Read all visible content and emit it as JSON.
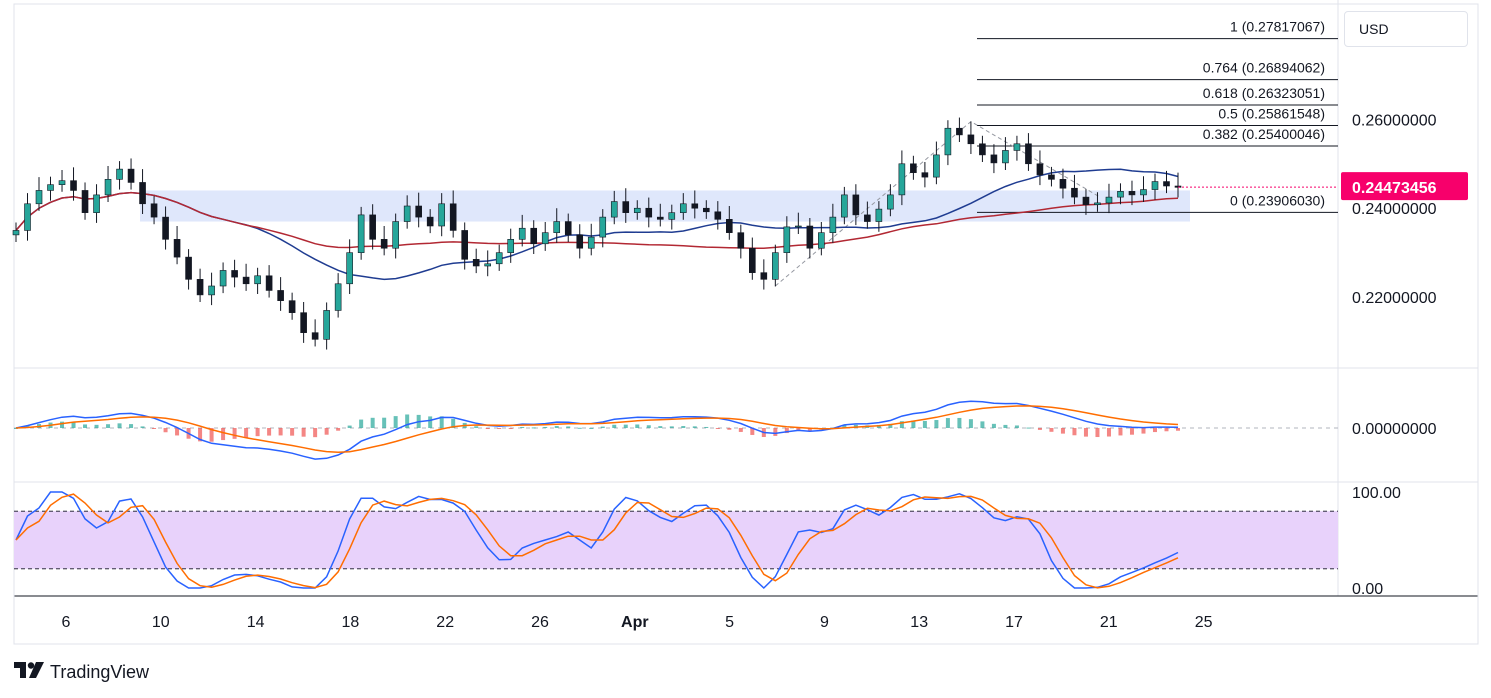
{
  "currency_label": "USD",
  "brand": {
    "name": "TradingView",
    "logo_icon": "tradingview-logo-icon"
  },
  "chart_data": {
    "type": "candlestick",
    "price_axis": {
      "ticks": [
        {
          "value": 0.26,
          "label": "0.26000000"
        },
        {
          "value": 0.24,
          "label": "0.24000000"
        },
        {
          "value": 0.22,
          "label": "0.22000000"
        }
      ],
      "ylim": [
        0.2045,
        0.2855
      ]
    },
    "last_price": {
      "value": 0.24473456,
      "label": "0.24473456",
      "color": "#f7006b"
    },
    "x_axis": {
      "labels": [
        "6",
        "10",
        "14",
        "18",
        "22",
        "26",
        "Apr",
        "5",
        "9",
        "13",
        "17",
        "21",
        "25"
      ],
      "day_index": [
        0,
        4,
        8,
        12,
        16,
        20,
        24,
        28,
        32,
        36,
        40,
        44,
        48
      ]
    },
    "bar_interval_days": 0.1667,
    "close": [
      0.235,
      0.241,
      0.244,
      0.2453,
      0.2462,
      0.244,
      0.239,
      0.243,
      0.2465,
      0.2488,
      0.2458,
      0.241,
      0.238,
      0.233,
      0.229,
      0.224,
      0.2205,
      0.2225,
      0.226,
      0.2245,
      0.223,
      0.2248,
      0.2215,
      0.2192,
      0.2165,
      0.212,
      0.2105,
      0.217,
      0.223,
      0.23,
      0.2385,
      0.233,
      0.231,
      0.237,
      0.2405,
      0.238,
      0.236,
      0.241,
      0.235,
      0.2285,
      0.227,
      0.2275,
      0.23,
      0.233,
      0.2355,
      0.232,
      0.2345,
      0.237,
      0.234,
      0.231,
      0.2335,
      0.238,
      0.2415,
      0.239,
      0.24,
      0.238,
      0.2375,
      0.239,
      0.241,
      0.24,
      0.2392,
      0.2375,
      0.2345,
      0.231,
      0.2255,
      0.224,
      0.23,
      0.2358,
      0.236,
      0.231,
      0.2345,
      0.238,
      0.243,
      0.2385,
      0.237,
      0.2398,
      0.243,
      0.25,
      0.248,
      0.247,
      0.252,
      0.258,
      0.2565,
      0.2545,
      0.252,
      0.2502,
      0.253,
      0.2545,
      0.25,
      0.2475,
      0.2465,
      0.2445,
      0.2425,
      0.2408,
      0.2412,
      0.2425,
      0.2438,
      0.243,
      0.2442,
      0.246,
      0.245,
      0.2447
    ],
    "moving_averages": [
      {
        "length": 20,
        "color": "#1f3c91"
      },
      {
        "length": 50,
        "color": "#b22833"
      }
    ],
    "support_zone": {
      "low": 0.237,
      "high": 0.244,
      "color": "#dfe7fb"
    },
    "fibonacci_levels": [
      {
        "ratio": "1",
        "value": 0.27817067,
        "label": "1 (0.27817067)"
      },
      {
        "ratio": "0.764",
        "value": 0.26894062,
        "label": "0.764 (0.26894062)"
      },
      {
        "ratio": "0.618",
        "value": 0.26323051,
        "label": "0.618 (0.26323051)"
      },
      {
        "ratio": "0.5",
        "value": 0.25861548,
        "label": "0.5 (0.25861548)"
      },
      {
        "ratio": "0.382",
        "value": 0.25400046,
        "label": "0.382 (0.25400046)"
      },
      {
        "ratio": "0",
        "value": 0.2390603,
        "label": "0 (0.23906030)"
      }
    ],
    "macd": {
      "zero_label": "0.00000000",
      "colors": {
        "macd": "#2962ff",
        "signal": "#ff6d00",
        "hist_up": "#26a69a",
        "hist_down": "#ef5350"
      }
    },
    "stochastic": {
      "ticks": [
        {
          "value": 100,
          "label": "100.00"
        },
        {
          "value": 0,
          "label": "0.00"
        }
      ],
      "bands": [
        80,
        20
      ],
      "colors": {
        "k": "#2962ff",
        "d": "#ff6d00",
        "band": "#e8d2fb"
      }
    }
  }
}
